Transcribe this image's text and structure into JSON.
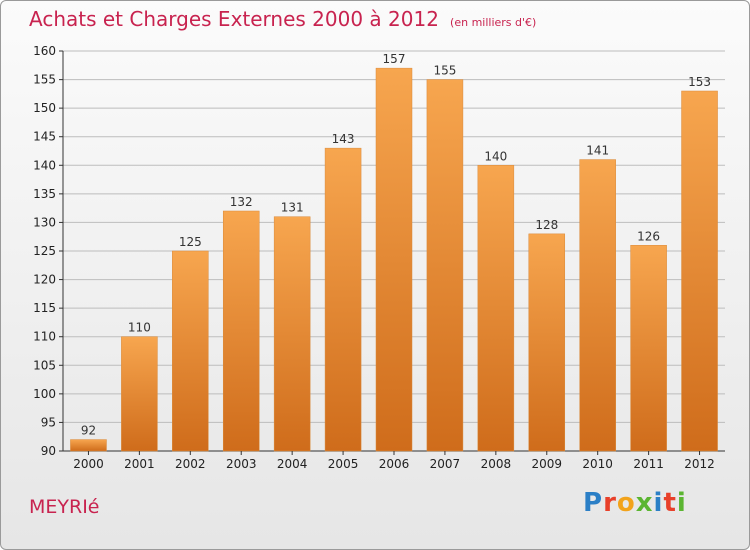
{
  "title": "Achats et Charges Externes 2000 à 2012",
  "subtitle": "(en milliers d'€)",
  "place": "MEYRIé",
  "logo": "Proxiti",
  "colors": {
    "title": "#c8234f",
    "bar_light": "#f7a64f",
    "bar_dark": "#cf6c1b",
    "grid": "#bdbdbd"
  },
  "chart_data": {
    "type": "bar",
    "categories": [
      "2000",
      "2001",
      "2002",
      "2003",
      "2004",
      "2005",
      "2006",
      "2007",
      "2008",
      "2009",
      "2010",
      "2011",
      "2012"
    ],
    "values": [
      92,
      110,
      125,
      132,
      131,
      143,
      157,
      155,
      140,
      128,
      141,
      126,
      153
    ],
    "ylim": [
      90,
      160
    ],
    "yticks": [
      90,
      95,
      100,
      105,
      110,
      115,
      120,
      125,
      130,
      135,
      140,
      145,
      150,
      155,
      160
    ],
    "grid": true,
    "data_labels": true
  }
}
